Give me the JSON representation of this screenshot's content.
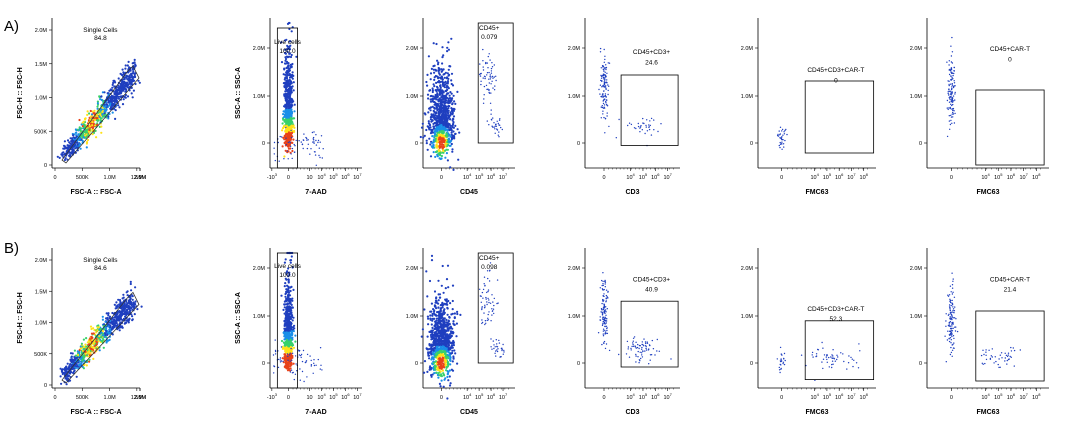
{
  "rows": [
    {
      "label": "A)",
      "panels": [
        {
          "type": "fsc",
          "gate_name": "Single Cells",
          "gate_value": "84.8",
          "xlabel": "FSC-A :: FSC-A",
          "ylabel": "FSC-H :: FSC-H",
          "xticks": [
            "0",
            "500K",
            "1.0M",
            "1.5M",
            "2.0M",
            "2.5M"
          ],
          "yticks": [
            "0",
            "500K",
            "1.0M",
            "1.5M",
            "2.0M"
          ]
        },
        {
          "type": "live",
          "gate_name": "Live cells",
          "gate_value": "100.0",
          "xlabel": "7-AAD",
          "ylabel": "SSC-A :: SSC-A",
          "yticks": [
            "0",
            "1.0M",
            "2.0M"
          ]
        },
        {
          "type": "cd45",
          "gate_name": "CD45+",
          "gate_value": "0.079",
          "xlabel": "CD45",
          "ylabel": "",
          "yticks": [
            "0",
            "1.0M",
            "2.0M"
          ]
        },
        {
          "type": "cd3",
          "gate_name": "CD45+CD3+",
          "gate_value": "24.6",
          "xlabel": "CD3",
          "ylabel": "",
          "yticks": [
            "0",
            "1.0M",
            "2.0M"
          ]
        },
        {
          "type": "fmc1",
          "gate_name": "CD45+CD3+CAR-T",
          "gate_value": "0",
          "xlabel": "FMC63",
          "ylabel": "",
          "yticks": [
            "0",
            "1.0M",
            "2.0M"
          ]
        },
        {
          "type": "fmc2",
          "gate_name": "CD45+CAR-T",
          "gate_value": "0",
          "xlabel": "FMC63",
          "ylabel": "",
          "yticks": [
            "0",
            "1.0M",
            "2.0M"
          ]
        }
      ]
    },
    {
      "label": "B)",
      "panels": [
        {
          "type": "fsc",
          "gate_name": "Single Cells",
          "gate_value": "84.6",
          "xlabel": "FSC-A :: FSC-A",
          "ylabel": "FSC-H :: FSC-H",
          "xticks": [
            "0",
            "500K",
            "1.0M",
            "1.5M",
            "2.0M",
            "2.5M"
          ],
          "yticks": [
            "0",
            "500K",
            "1.0M",
            "1.5M",
            "2.0M"
          ]
        },
        {
          "type": "live",
          "gate_name": "Live cells",
          "gate_value": "100.0",
          "xlabel": "7-AAD",
          "ylabel": "SSC-A :: SSC-A",
          "yticks": [
            "0",
            "1.0M",
            "2.0M"
          ]
        },
        {
          "type": "cd45",
          "gate_name": "CD45+",
          "gate_value": "0.098",
          "xlabel": "CD45",
          "ylabel": "",
          "yticks": [
            "0",
            "1.0M",
            "2.0M"
          ]
        },
        {
          "type": "cd3",
          "gate_name": "CD45+CD3+",
          "gate_value": "40.9",
          "xlabel": "CD3",
          "ylabel": "",
          "yticks": [
            "0",
            "1.0M",
            "2.0M"
          ]
        },
        {
          "type": "fmc1",
          "gate_name": "CD45+CD3+CAR-T",
          "gate_value": "52.3",
          "xlabel": "FMC63",
          "ylabel": "",
          "yticks": [
            "0",
            "1.0M",
            "2.0M"
          ]
        },
        {
          "type": "fmc2",
          "gate_name": "CD45+CAR-T",
          "gate_value": "21.4",
          "xlabel": "FMC63",
          "ylabel": "",
          "yticks": [
            "0",
            "1.0M",
            "2.0M"
          ]
        }
      ]
    }
  ],
  "log_ticks": {
    "neg": "-10",
    "pos": [
      "10",
      "10",
      "10",
      "10"
    ],
    "exps": [
      "3",
      "4",
      "5",
      "6",
      "7",
      "8"
    ]
  },
  "colors": {
    "sparse": "#1f3fbf",
    "dense_low": "#1a8fe8",
    "dense_mid": "#38d16b",
    "dense_high": "#ffe21a",
    "dense_peak": "#e8421a",
    "axis": "#000000"
  },
  "chart_data": [
    {
      "type": "scatter",
      "row": "A",
      "title": "Single Cells",
      "xlabel": "FSC-A :: FSC-A",
      "ylabel": "FSC-H :: FSC-H",
      "gate_percent": 84.8
    },
    {
      "type": "scatter",
      "row": "A",
      "title": "Live cells",
      "xlabel": "7-AAD",
      "ylabel": "SSC-A :: SSC-A",
      "gate_percent": 100.0
    },
    {
      "type": "scatter",
      "row": "A",
      "title": "CD45+",
      "xlabel": "CD45",
      "gate_percent": 0.079
    },
    {
      "type": "scatter",
      "row": "A",
      "title": "CD45+CD3+",
      "xlabel": "CD3",
      "gate_percent": 24.6
    },
    {
      "type": "scatter",
      "row": "A",
      "title": "CD45+CD3+CAR-T",
      "xlabel": "FMC63",
      "gate_percent": 0
    },
    {
      "type": "scatter",
      "row": "A",
      "title": "CD45+CAR-T",
      "xlabel": "FMC63",
      "gate_percent": 0
    },
    {
      "type": "scatter",
      "row": "B",
      "title": "Single Cells",
      "xlabel": "FSC-A :: FSC-A",
      "ylabel": "FSC-H :: FSC-H",
      "gate_percent": 84.6
    },
    {
      "type": "scatter",
      "row": "B",
      "title": "Live cells",
      "xlabel": "7-AAD",
      "ylabel": "SSC-A :: SSC-A",
      "gate_percent": 100.0
    },
    {
      "type": "scatter",
      "row": "B",
      "title": "CD45+",
      "xlabel": "CD45",
      "gate_percent": 0.098
    },
    {
      "type": "scatter",
      "row": "B",
      "title": "CD45+CD3+",
      "xlabel": "CD3",
      "gate_percent": 40.9
    },
    {
      "type": "scatter",
      "row": "B",
      "title": "CD45+CD3+CAR-T",
      "xlabel": "FMC63",
      "gate_percent": 52.3
    },
    {
      "type": "scatter",
      "row": "B",
      "title": "CD45+CAR-T",
      "xlabel": "FMC63",
      "gate_percent": 21.4
    }
  ]
}
